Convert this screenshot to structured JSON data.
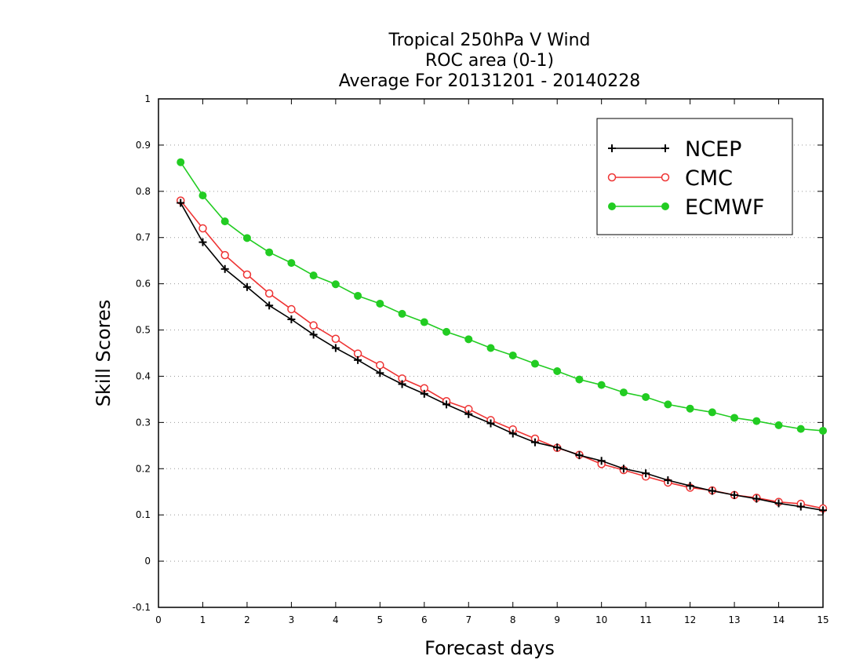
{
  "chart_data": {
    "type": "line",
    "title_lines": [
      "Tropical 250hPa V Wind",
      "ROC area (0-1)",
      "Average For 20131201 - 20140228"
    ],
    "xlabel": "Forecast days",
    "ylabel": "Skill Scores",
    "xlim": [
      0,
      15
    ],
    "ylim": [
      -0.1,
      1
    ],
    "x_ticks": [
      0,
      1,
      2,
      3,
      4,
      5,
      6,
      7,
      8,
      9,
      10,
      11,
      12,
      13,
      14,
      15
    ],
    "y_ticks": [
      -0.1,
      0,
      0.1,
      0.2,
      0.3,
      0.4,
      0.5,
      0.6,
      0.7,
      0.8,
      0.9,
      1
    ],
    "y_tick_labels": [
      "-0.1",
      "0",
      "0.1",
      "0.2",
      "0.3",
      "0.4",
      "0.5",
      "0.6",
      "0.7",
      "0.8",
      "0.9",
      "1"
    ],
    "grid": "horizontal dotted",
    "legend_position": "top-right",
    "x": [
      0.5,
      1,
      1.5,
      2,
      2.5,
      3,
      3.5,
      4,
      4.5,
      5,
      5.5,
      6,
      6.5,
      7,
      7.5,
      8,
      8.5,
      9,
      9.5,
      10,
      10.5,
      11,
      11.5,
      12,
      12.5,
      13,
      13.5,
      14,
      14.5,
      15
    ],
    "series": [
      {
        "name": "NCEP",
        "color": "#000000",
        "marker": "plus",
        "values": [
          0.775,
          0.69,
          0.632,
          0.593,
          0.553,
          0.523,
          0.49,
          0.461,
          0.435,
          0.407,
          0.383,
          0.362,
          0.339,
          0.318,
          0.298,
          0.276,
          0.257,
          0.246,
          0.229,
          0.217,
          0.2,
          0.19,
          0.175,
          0.163,
          0.152,
          0.143,
          0.135,
          0.125,
          0.118,
          0.11
        ]
      },
      {
        "name": "CMC",
        "color": "#ee3333",
        "marker": "open-circle",
        "values": [
          0.78,
          0.72,
          0.662,
          0.62,
          0.579,
          0.545,
          0.51,
          0.481,
          0.449,
          0.424,
          0.395,
          0.374,
          0.346,
          0.329,
          0.305,
          0.285,
          0.265,
          0.245,
          0.23,
          0.21,
          0.197,
          0.183,
          0.17,
          0.159,
          0.153,
          0.143,
          0.137,
          0.128,
          0.124,
          0.114
        ]
      },
      {
        "name": "ECMWF",
        "color": "#22cc22",
        "marker": "filled-circle",
        "values": [
          0.863,
          0.791,
          0.735,
          0.699,
          0.668,
          0.645,
          0.618,
          0.599,
          0.574,
          0.557,
          0.535,
          0.517,
          0.496,
          0.48,
          0.461,
          0.445,
          0.427,
          0.411,
          0.393,
          0.381,
          0.365,
          0.355,
          0.339,
          0.33,
          0.322,
          0.31,
          0.303,
          0.294,
          0.286,
          0.282
        ]
      }
    ]
  }
}
